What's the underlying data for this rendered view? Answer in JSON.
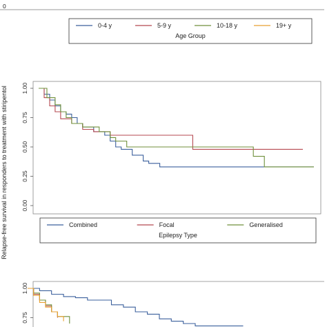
{
  "y_axis_title": "Relapse-free survival in responders to treatment with stiripentol",
  "chart_data": [
    {
      "type": "line",
      "step": true,
      "legend_title": "Age Group",
      "legend_placement": "bottom",
      "series": [
        {
          "name": "0-4 y",
          "color": "#3a5f9c"
        },
        {
          "name": "5-9 y",
          "color": "#b5474f"
        },
        {
          "name": "10-18 y",
          "color": "#6f8f3a"
        },
        {
          "name": "19+ y",
          "color": "#e8a030"
        }
      ]
    },
    {
      "type": "line",
      "step": true,
      "legend_title": "Epilepsy Type",
      "legend_placement": "bottom",
      "y_ticks": [
        "0.00",
        "0.25",
        "0.50",
        "0.75",
        "1.00"
      ],
      "ylim": [
        0,
        1
      ],
      "xlim": [
        0,
        100
      ],
      "series": [
        {
          "name": "Combined",
          "color": "#3a5f9c",
          "x": [
            0,
            2,
            4,
            6,
            8,
            10,
            12,
            14,
            16,
            20,
            24,
            26,
            28,
            30,
            34,
            38,
            40,
            44,
            100
          ],
          "y": [
            1.0,
            0.95,
            0.9,
            0.85,
            0.8,
            0.78,
            0.75,
            0.7,
            0.67,
            0.63,
            0.6,
            0.55,
            0.5,
            0.48,
            0.43,
            0.38,
            0.36,
            0.33,
            0.33
          ]
        },
        {
          "name": "Focal",
          "color": "#b5474f",
          "x": [
            0,
            2,
            4,
            6,
            8,
            12,
            16,
            20,
            26,
            56,
            96
          ],
          "y": [
            1.0,
            0.92,
            0.85,
            0.8,
            0.74,
            0.7,
            0.65,
            0.63,
            0.6,
            0.48,
            0.48
          ]
        },
        {
          "name": "Generalised",
          "color": "#6f8f3a",
          "x": [
            0,
            3,
            6,
            8,
            10,
            12,
            16,
            22,
            26,
            28,
            32,
            78,
            82,
            100
          ],
          "y": [
            1.0,
            0.92,
            0.86,
            0.8,
            0.75,
            0.7,
            0.67,
            0.63,
            0.58,
            0.55,
            0.5,
            0.42,
            0.33,
            0.33
          ]
        }
      ]
    },
    {
      "type": "line",
      "step": true,
      "y_ticks": [
        "1.00",
        "0.75"
      ],
      "xlim": [
        0,
        100
      ],
      "series": [
        {
          "color": "#3a5f9c",
          "x": [
            0,
            4,
            8,
            12,
            16,
            20,
            24,
            28,
            32,
            36,
            40,
            44,
            48,
            52,
            56,
            72
          ],
          "y": [
            1.0,
            0.98,
            0.95,
            0.93,
            0.92,
            0.9,
            0.9,
            0.86,
            0.84,
            0.8,
            0.78,
            0.74,
            0.72,
            0.7,
            0.68,
            0.68
          ]
        },
        {
          "color": "#b5474f",
          "x": [
            0,
            2,
            4,
            6,
            8,
            10
          ],
          "y": [
            1.0,
            0.95,
            0.9,
            0.85,
            0.8,
            0.75
          ]
        },
        {
          "color": "#6f8f3a",
          "x": [
            0,
            2,
            4,
            6,
            8,
            10,
            14
          ],
          "y": [
            1.0,
            0.96,
            0.9,
            0.86,
            0.8,
            0.76,
            0.7
          ]
        },
        {
          "color": "#e8a030",
          "x": [
            0,
            2,
            4,
            6,
            8,
            10,
            12
          ],
          "y": [
            1.0,
            0.94,
            0.88,
            0.84,
            0.8,
            0.76,
            0.72
          ]
        }
      ]
    }
  ]
}
